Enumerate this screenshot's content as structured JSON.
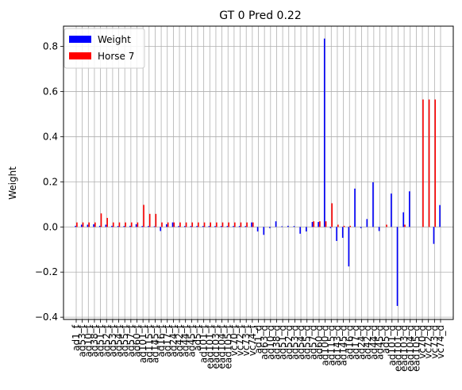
{
  "chart_data": {
    "type": "bar",
    "title": "GT 0 Pred 0.22",
    "xlabel": "",
    "ylabel": "Weight",
    "ylim": [
      -0.41,
      0.89
    ],
    "yticks": [
      -0.4,
      -0.2,
      0.0,
      0.2,
      0.4,
      0.6,
      0.8
    ],
    "ytick_labels": [
      "−0.4",
      "−0.2",
      "0.0",
      "0.2",
      "0.4",
      "0.6",
      "0.8"
    ],
    "grid": true,
    "legend_position": "top-left",
    "categories": [
      "ad1_f",
      "ad53_f",
      "ad10_f",
      "ad38_f",
      "ad51_f",
      "ad52_f",
      "ad53_f",
      "ad54_f",
      "ad55_f",
      "ad57_f",
      "ad60_f",
      "ad101_f",
      "ad115_f",
      "ad145_f",
      "ad16_f",
      "ad17_f",
      "ad24_f",
      "ad42_f",
      "ad44_f",
      "ad45_f",
      "ad5_f",
      "ad101_f",
      "ead101_f",
      "ead103_f",
      "ead104_f",
      "ead105_f",
      "vc70_f",
      "vc72_f",
      "vc73_f",
      "vc74_f",
      "ad1_d",
      "ad63_d",
      "ad10_d",
      "ad38_d",
      "ad51_d",
      "ad52_d",
      "ad53_d",
      "ad54_d",
      "ad55_d",
      "ad57_d",
      "ad60_d",
      "ad100_d",
      "ad115_d",
      "ad143_d",
      "ad145_d",
      "ad16_d",
      "ad17_d",
      "ad24_d",
      "ad42_d",
      "ad44_d",
      "ad45_d",
      "ad5_d",
      "ad101_d",
      "ead101_d",
      "ead103_d",
      "ead104_d",
      "ead105_d",
      "vc70_d",
      "vc72_d",
      "vc73_d",
      "vc74_d"
    ],
    "series": [
      {
        "name": "Weight",
        "color": "#0000ff",
        "values": [
          0.005,
          0.01,
          0.01,
          0.012,
          0.005,
          0.01,
          0.005,
          0.004,
          0.004,
          0.005,
          0.012,
          0.004,
          0.004,
          0.003,
          -0.018,
          0.012,
          0.02,
          0.004,
          0.004,
          0.004,
          0.004,
          0.004,
          0.004,
          0.004,
          0.004,
          0.004,
          0.004,
          0.004,
          0.004,
          0.02,
          -0.02,
          -0.035,
          -0.005,
          0.025,
          0.003,
          0.005,
          0.004,
          -0.03,
          -0.02,
          0.022,
          0.022,
          0.835,
          -0.005,
          -0.062,
          -0.048,
          -0.175,
          0.17,
          -0.005,
          0.035,
          0.198,
          -0.018,
          0.0,
          0.148,
          -0.35,
          0.065,
          0.158,
          0.0,
          0.0,
          0.0,
          -0.075,
          0.097
        ]
      },
      {
        "name": "Horse 7",
        "color": "#ff0000",
        "values": [
          0.02,
          0.02,
          0.02,
          0.02,
          0.06,
          0.04,
          0.02,
          0.02,
          0.02,
          0.02,
          0.02,
          0.098,
          0.058,
          0.058,
          0.02,
          0.02,
          0.02,
          0.02,
          0.02,
          0.02,
          0.02,
          0.02,
          0.02,
          0.02,
          0.02,
          0.02,
          0.02,
          0.02,
          0.02,
          0.02,
          0.0,
          0.0,
          0.0,
          0.0,
          0.0,
          0.0,
          0.0,
          0.0,
          0.0,
          0.025,
          0.025,
          0.025,
          0.105,
          0.01,
          0.005,
          0.005,
          0.0,
          0.0,
          0.0,
          0.0,
          0.0,
          0.01,
          0.0,
          0.0,
          0.01,
          0.0,
          0.0,
          0.565,
          0.565,
          0.565,
          0.0
        ]
      }
    ]
  }
}
